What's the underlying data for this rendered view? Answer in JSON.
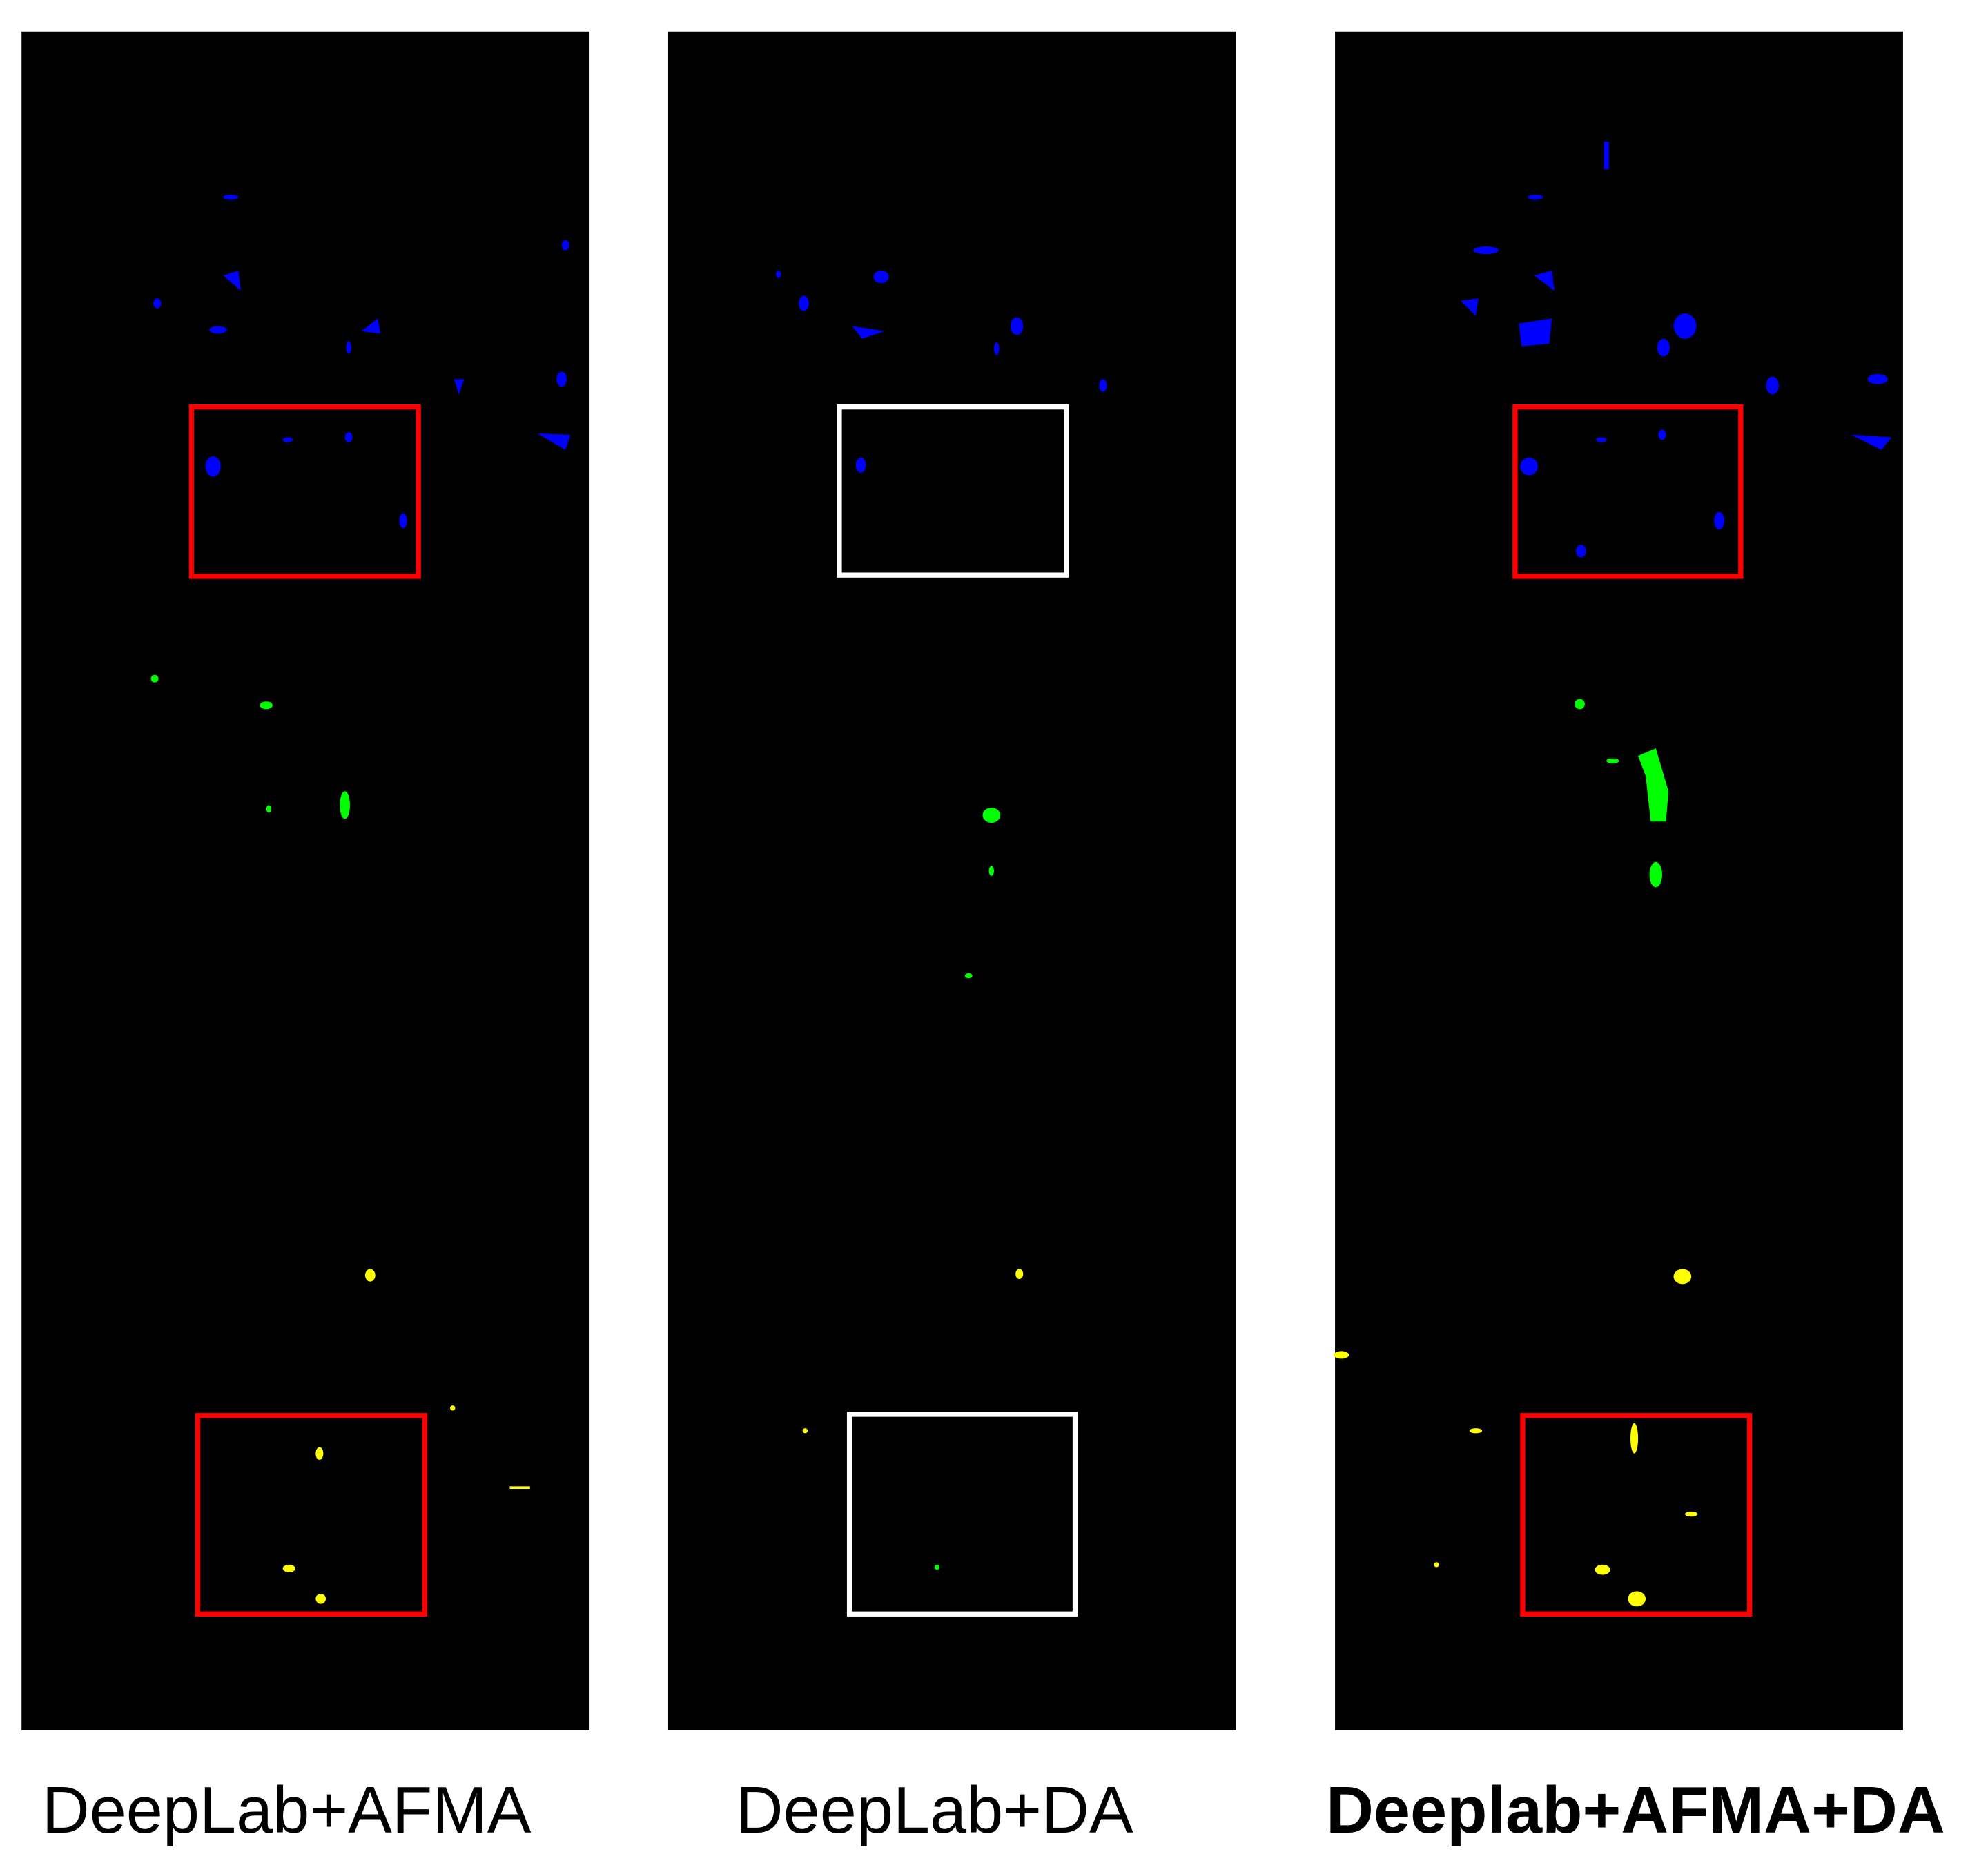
{
  "panels": [
    {
      "caption": "DeepLab+AFMA"
    },
    {
      "caption": "DeepLab+DA"
    },
    {
      "caption": "Deeplab+AFMA+DA"
    }
  ]
}
